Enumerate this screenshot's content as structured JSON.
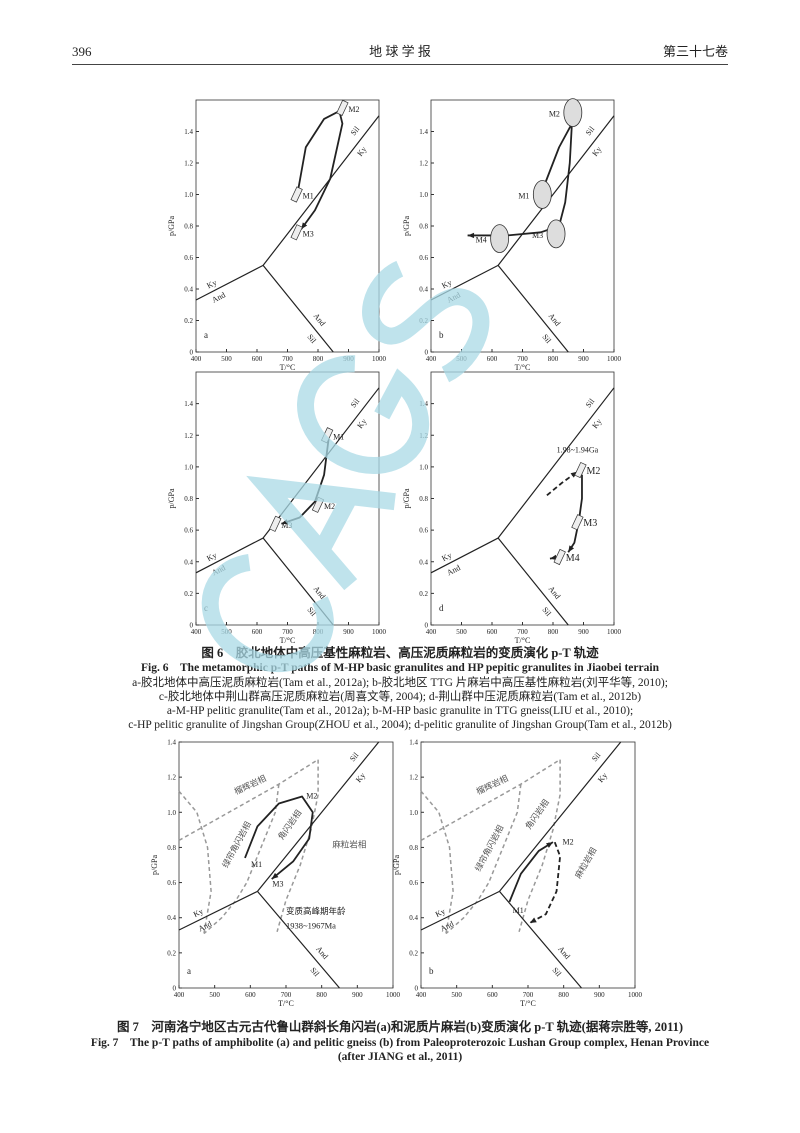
{
  "header": {
    "page_number": "396",
    "journal": "地 球 学 报",
    "volume": "第三十七卷"
  },
  "watermark": "CAGS",
  "colors": {
    "watermark": "#a9d9e6",
    "facies_dashed": "#999999",
    "line": "#222222"
  },
  "fig6": {
    "title_cn": "图 6　胶北地体中高压基性麻粒岩、高压泥质麻粒岩的变质演化 p-T 轨迹",
    "title_en": "Fig. 6　The metamorphic p-T paths of M-HP basic granulites and HP pepitic granulites in Jiaobei terrain",
    "note_cn_1": "a-胶北地体中高压泥质麻粒岩(Tam et al., 2012a); b-胶北地区 TTG 片麻岩中高压基性麻粒岩(刘平华等, 2010);",
    "note_cn_2": "c-胶北地体中荆山群高压泥质麻粒岩(周喜文等, 2004); d-荆山群中压泥质麻粒岩(Tam et al., 2012b)",
    "note_en_1": "a-M-HP pelitic granulite(Tam et al., 2012a); b-M-HP basic granulite in TTG gneiss(LIU et al., 2010);",
    "note_en_2": "c-HP pelitic granulite of Jingshan Group(ZHOU et al., 2004); d-pelitic granulite of Jingshan Group(Tam et al., 2012b)"
  },
  "fig7": {
    "title_cn": "图 7　河南洛宁地区古元古代鲁山群斜长角闪岩(a)和泥质片麻岩(b)变质演化 p-T 轨迹(据蒋宗胜等, 2011)",
    "title_en_1": "Fig. 7　The p-T paths of amphibolite (a) and pelitic gneiss (b) from Paleoproterozoic Lushan Group complex, Henan Province",
    "title_en_2": "(after JIANG et al., 2011)"
  },
  "chart_data": [
    {
      "panel": "a",
      "figure": "6",
      "type": "line",
      "xlabel": "T/°C",
      "ylabel": "p/GPa",
      "xlim": [
        400,
        1000
      ],
      "ylim": [
        0,
        1.6
      ],
      "xticks": [
        "400",
        "500",
        "600",
        "700",
        "800",
        "900",
        "1000"
      ],
      "yticks": [
        "0",
        "0.2",
        "0.4",
        "0.6",
        "0.8",
        "1.0",
        "1.2",
        "1.4"
      ],
      "phase_labels": [
        "Ky",
        "Sil",
        "Ky",
        "And",
        "Sil",
        "And"
      ],
      "points": [
        {
          "label": "M1",
          "T": 730,
          "p": 1.0
        },
        {
          "label": "M2",
          "T": 880,
          "p": 1.55
        },
        {
          "label": "M3",
          "T": 730,
          "p": 0.76
        }
      ],
      "path": [
        [
          735,
          1.03
        ],
        [
          760,
          1.3
        ],
        [
          820,
          1.48
        ],
        [
          870,
          1.53
        ],
        [
          880,
          1.45
        ],
        [
          840,
          1.1
        ],
        [
          790,
          0.9
        ],
        [
          745,
          0.78
        ]
      ]
    },
    {
      "panel": "b",
      "figure": "6",
      "type": "line",
      "xlabel": "T/°C",
      "ylabel": "p/GPa",
      "xlim": [
        400,
        1000
      ],
      "ylim": [
        0,
        1.6
      ],
      "xticks": [
        "400",
        "500",
        "600",
        "700",
        "800",
        "900",
        "1000"
      ],
      "yticks": [
        "0",
        "0.2",
        "0.4",
        "0.6",
        "0.8",
        "1.0",
        "1.2",
        "1.4"
      ],
      "phase_labels": [
        "Ky",
        "Sil",
        "Ky",
        "And",
        "Sil",
        "And"
      ],
      "points": [
        {
          "label": "M1",
          "T": 765,
          "p": 1.0
        },
        {
          "label": "M2",
          "T": 865,
          "p": 1.52
        },
        {
          "label": "M3",
          "T": 810,
          "p": 0.75
        },
        {
          "label": "M4",
          "T": 625,
          "p": 0.72
        }
      ],
      "path": [
        [
          770,
          1.05
        ],
        [
          820,
          1.3
        ],
        [
          862,
          1.45
        ],
        [
          855,
          1.2
        ],
        [
          840,
          0.95
        ],
        [
          820,
          0.8
        ],
        [
          760,
          0.76
        ],
        [
          650,
          0.74
        ],
        [
          520,
          0.74
        ]
      ]
    },
    {
      "panel": "c",
      "figure": "6",
      "type": "line",
      "xlabel": "T/°C",
      "ylabel": "p/GPa",
      "xlim": [
        400,
        1000
      ],
      "ylim": [
        0,
        1.6
      ],
      "xticks": [
        "400",
        "500",
        "600",
        "700",
        "800",
        "900",
        "1000"
      ],
      "yticks": [
        "0",
        "0.2",
        "0.4",
        "0.6",
        "0.8",
        "1.0",
        "1.2",
        "1.4"
      ],
      "phase_labels": [
        "Ky",
        "Sil",
        "Ky",
        "And",
        "Sil",
        "And"
      ],
      "points": [
        {
          "label": "M1",
          "T": 830,
          "p": 1.2
        },
        {
          "label": "M2",
          "T": 800,
          "p": 0.76
        },
        {
          "label": "M3",
          "T": 660,
          "p": 0.64
        }
      ],
      "path": [
        [
          835,
          1.18
        ],
        [
          820,
          0.95
        ],
        [
          790,
          0.78
        ],
        [
          740,
          0.68
        ],
        [
          680,
          0.64
        ]
      ]
    },
    {
      "panel": "d",
      "figure": "6",
      "type": "line",
      "xlabel": "T/°C",
      "ylabel": "p/GPa",
      "xlim": [
        400,
        1000
      ],
      "ylim": [
        0,
        1.6
      ],
      "xticks": [
        "400",
        "500",
        "600",
        "700",
        "800",
        "900",
        "1000"
      ],
      "yticks": [
        "0",
        "0.2",
        "0.4",
        "0.6",
        "0.8",
        "1.0",
        "1.2",
        "1.4"
      ],
      "phase_labels": [
        "Ky",
        "Sil",
        "Ky",
        "And",
        "Sil",
        "And"
      ],
      "annotation": "1.98~1.94Ga",
      "points": [
        {
          "label": "M2",
          "T": 890,
          "p": 0.98
        },
        {
          "label": "M3",
          "T": 880,
          "p": 0.65
        },
        {
          "label": "M4",
          "T": 822,
          "p": 0.43
        }
      ],
      "dashed_path": [
        [
          780,
          0.82
        ],
        [
          830,
          0.9
        ],
        [
          880,
          0.97
        ]
      ],
      "path": [
        [
          895,
          0.95
        ],
        [
          895,
          0.8
        ],
        [
          885,
          0.66
        ],
        [
          870,
          0.52
        ],
        [
          850,
          0.46
        ]
      ],
      "path2": [
        [
          820,
          0.43
        ],
        [
          790,
          0.42
        ]
      ]
    },
    {
      "panel": "a",
      "figure": "7",
      "type": "line",
      "xlabel": "T/°C",
      "ylabel": "p/GPa",
      "xlim": [
        400,
        1000
      ],
      "ylim": [
        0,
        1.4
      ],
      "xticks": [
        "400",
        "500",
        "600",
        "700",
        "800",
        "900",
        "1000"
      ],
      "yticks": [
        "0",
        "0.2",
        "0.4",
        "0.6",
        "0.8",
        "1.0",
        "1.2",
        "1.4"
      ],
      "phase_labels": [
        "Ky",
        "Sil",
        "Ky",
        "And",
        "Sil",
        "And"
      ],
      "facies": [
        "榴辉岩相",
        "绿帘角闪岩相",
        "角闪岩相",
        "麻粒岩相"
      ],
      "annotation_1": "变质高峰期年龄",
      "annotation_2": "1938~1967Ma",
      "points": [
        {
          "label": "M1",
          "T": 585,
          "p": 0.71
        },
        {
          "label": "M2",
          "T": 740,
          "p": 1.1
        },
        {
          "label": "M3",
          "T": 645,
          "p": 0.6
        }
      ],
      "path": [
        [
          585,
          0.74
        ],
        [
          620,
          0.92
        ],
        [
          680,
          1.05
        ],
        [
          745,
          1.09
        ],
        [
          775,
          1.0
        ],
        [
          765,
          0.85
        ],
        [
          720,
          0.72
        ],
        [
          660,
          0.62
        ]
      ]
    },
    {
      "panel": "b",
      "figure": "7",
      "type": "line",
      "xlabel": "T/°C",
      "ylabel": "p/GPa",
      "xlim": [
        400,
        1000
      ],
      "ylim": [
        0,
        1.4
      ],
      "xticks": [
        "400",
        "500",
        "600",
        "700",
        "800",
        "900",
        "1000"
      ],
      "yticks": [
        "0",
        "0.2",
        "0.4",
        "0.6",
        "0.8",
        "1.0",
        "1.2",
        "1.4"
      ],
      "phase_labels": [
        "Ky",
        "Sil",
        "Ky",
        "And",
        "Sil",
        "And"
      ],
      "facies": [
        "榴辉岩相",
        "绿帘角闪岩相",
        "角闪岩相",
        "麻粒岩相"
      ],
      "points": [
        {
          "label": "M1",
          "T": 640,
          "p": 0.45
        },
        {
          "label": "M2",
          "T": 780,
          "p": 0.84
        }
      ],
      "path": [
        [
          648,
          0.49
        ],
        [
          680,
          0.65
        ],
        [
          730,
          0.78
        ],
        [
          770,
          0.83
        ]
      ],
      "dashed_path": [
        [
          775,
          0.83
        ],
        [
          790,
          0.75
        ],
        [
          780,
          0.55
        ],
        [
          750,
          0.42
        ],
        [
          705,
          0.37
        ]
      ]
    }
  ]
}
